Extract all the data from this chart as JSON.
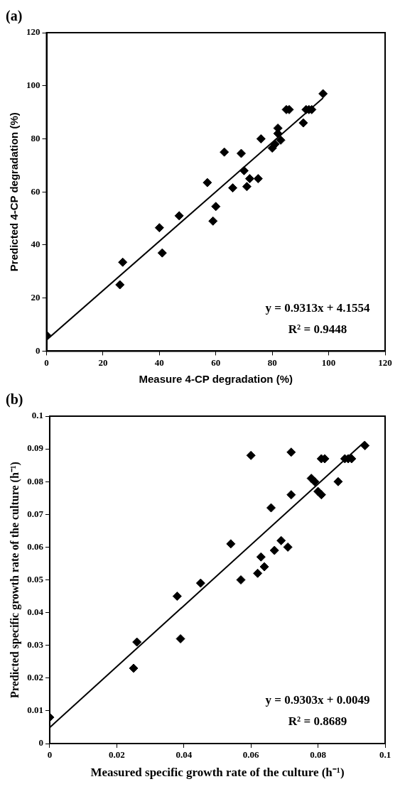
{
  "chart_data": [
    {
      "type": "scatter",
      "title": "(a)",
      "xlabel": "Measure 4-CP degradation (%)",
      "ylabel": "Predicted 4-CP degradation (%)",
      "xlim": [
        0,
        120
      ],
      "xticks": [
        0,
        20,
        40,
        60,
        80,
        100,
        120
      ],
      "ylim": [
        0,
        120
      ],
      "yticks": [
        0,
        20,
        40,
        60,
        80,
        100,
        120
      ],
      "grid": false,
      "legend": false,
      "annotations": [
        "y = 0.9313x + 4.1554",
        "R² = 0.9448"
      ],
      "series": [
        {
          "type": "scatter",
          "color": "#000000",
          "marker": "diamond",
          "x": [
            0,
            26,
            27,
            40,
            41,
            47,
            57,
            59,
            60,
            63,
            66,
            69,
            70,
            71,
            72,
            75,
            76,
            80,
            81,
            82,
            82,
            83,
            85,
            86,
            91,
            92,
            93,
            94,
            98
          ],
          "values": [
            6,
            25,
            33.5,
            46.5,
            37,
            51,
            63.5,
            49,
            54.5,
            75,
            61.5,
            74.5,
            68,
            62,
            65,
            65,
            80,
            76.5,
            78,
            84,
            82,
            79.5,
            91,
            91,
            86,
            91,
            91,
            91,
            97
          ]
        },
        {
          "type": "line",
          "color": "#000000",
          "marker": "none",
          "line_style": "solid",
          "x": [
            0,
            98
          ],
          "values": [
            4.2,
            95.4
          ]
        }
      ]
    },
    {
      "type": "scatter",
      "title": "(b)",
      "xlabel": "Measured specific growth rate of the culture (h⁻¹)",
      "ylabel": "Predicted specific growth rate of the culture (h⁻¹)",
      "xlim": [
        0,
        0.1
      ],
      "xticks": [
        0,
        0.02,
        0.04,
        0.06,
        0.08,
        0.1
      ],
      "ylim": [
        0,
        0.1
      ],
      "yticks": [
        0,
        0.01,
        0.02,
        0.03,
        0.04,
        0.05,
        0.06,
        0.07,
        0.08,
        0.09,
        0.1
      ],
      "grid": false,
      "legend": false,
      "annotations": [
        "y = 0.9303x + 0.0049",
        "R² = 0.8689"
      ],
      "series": [
        {
          "type": "scatter",
          "color": "#000000",
          "marker": "diamond",
          "x": [
            0,
            0.025,
            0.026,
            0.038,
            0.039,
            0.045,
            0.054,
            0.057,
            0.06,
            0.062,
            0.063,
            0.064,
            0.066,
            0.067,
            0.069,
            0.071,
            0.072,
            0.072,
            0.078,
            0.079,
            0.08,
            0.081,
            0.081,
            0.082,
            0.086,
            0.088,
            0.089,
            0.09,
            0.094
          ],
          "values": [
            0.008,
            0.023,
            0.031,
            0.045,
            0.032,
            0.049,
            0.061,
            0.05,
            0.088,
            0.052,
            0.057,
            0.054,
            0.072,
            0.059,
            0.062,
            0.06,
            0.076,
            0.089,
            0.081,
            0.08,
            0.077,
            0.087,
            0.076,
            0.087,
            0.08,
            0.087,
            0.087,
            0.087,
            0.091
          ]
        },
        {
          "type": "line",
          "color": "#000000",
          "marker": "none",
          "line_style": "solid",
          "x": [
            0,
            0.094
          ],
          "values": [
            0.0049,
            0.0923
          ]
        }
      ]
    }
  ]
}
